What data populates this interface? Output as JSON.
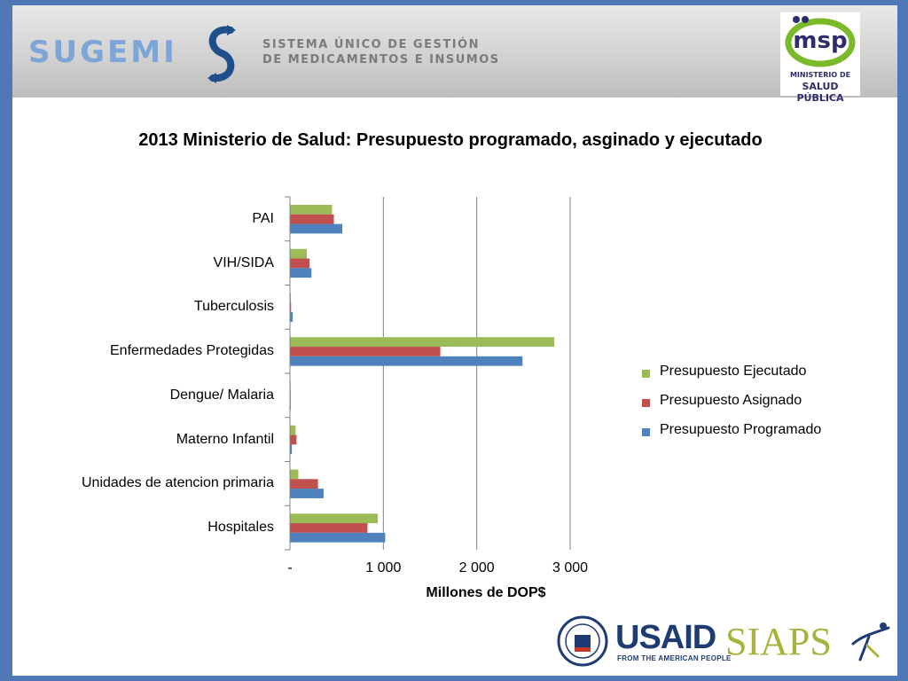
{
  "header": {
    "brand": "SUGEMI",
    "subtitle_line1": "SISTEMA ÚNICO DE GESTIÓN",
    "subtitle_line2": "DE MEDICAMENTOS E INSUMOS",
    "ministry_logo_mark": "msp",
    "ministry_line1": "MINISTERIO DE",
    "ministry_line2": "SALUD PÚBLICA"
  },
  "footer": {
    "usaid": "USAID",
    "usaid_sub": "FROM THE AMERICAN PEOPLE",
    "siaps": "SIAPS"
  },
  "colors": {
    "ejecutado": "#9bbb59",
    "asignado": "#c0504d",
    "programado": "#4f81bd",
    "gridline": "#808080"
  },
  "chart_data": {
    "type": "bar",
    "orientation": "horizontal",
    "title": "2013 Ministerio de Salud: Presupuesto programado, asginado y ejecutado",
    "xlabel": "Millones de DOP$",
    "ylabel": "",
    "xlim": [
      0,
      3000
    ],
    "xticks": [
      0,
      1000,
      2000,
      3000
    ],
    "xtick_labels": [
      "-",
      "1 000",
      "2 000",
      "3 000"
    ],
    "grid": "vertical",
    "legend_position": "right",
    "categories": [
      "PAI",
      "VIH/SIDA",
      "Tuberculosis",
      "Enfermedades Protegidas",
      "Dengue/ Malaria",
      "Materno Infantil",
      "Unidades de atencion primaria",
      "Hospitales"
    ],
    "series": [
      {
        "name": "Presupuesto Ejecutado",
        "values": [
          450,
          180,
          10,
          2830,
          5,
          60,
          90,
          940
        ]
      },
      {
        "name": "Presupuesto Asignado",
        "values": [
          470,
          210,
          12,
          1610,
          5,
          70,
          300,
          830
        ]
      },
      {
        "name": "Presupuesto Programado",
        "values": [
          560,
          230,
          30,
          2490,
          8,
          20,
          360,
          1020
        ]
      }
    ]
  }
}
